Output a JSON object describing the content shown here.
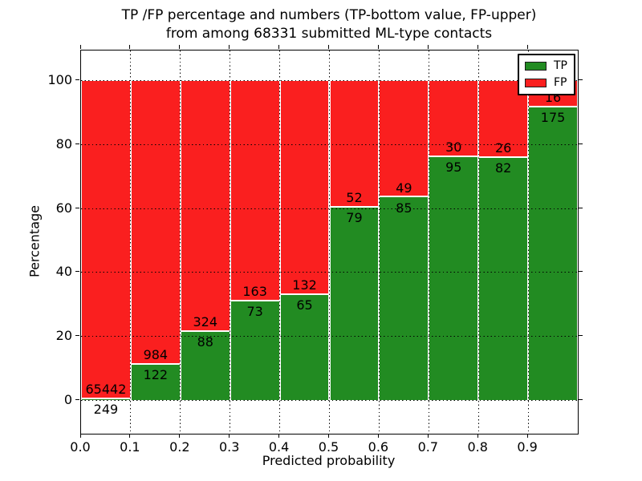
{
  "chart_data": {
    "type": "bar",
    "variant": "stacked-percentage-histogram",
    "title_lines": [
      "TP /FP percentage and numbers (TP-bottom value, FP-upper)",
      "from among 68331 submitted ML-type contacts"
    ],
    "xlabel": "Predicted probability",
    "ylabel": "Percentage",
    "total_contacts": 68331,
    "bin_width": 0.1,
    "bin_left_edges": [
      0.0,
      0.1,
      0.2,
      0.3,
      0.4,
      0.5,
      0.6,
      0.7,
      0.8,
      0.9
    ],
    "xtick_labels": [
      "0.0",
      "0.1",
      "0.2",
      "0.3",
      "0.4",
      "0.5",
      "0.6",
      "0.7",
      "0.8",
      "0.9"
    ],
    "ytick_values": [
      0,
      20,
      40,
      60,
      80,
      100
    ],
    "xlim": [
      0.0,
      1.0
    ],
    "ylim": [
      -10.5,
      109.5
    ],
    "grid": {
      "style": "dotted",
      "color": "#000000",
      "above_bars": true
    },
    "bar_edge_color": "#ffffff",
    "legend": {
      "position": "upper-right",
      "entries": [
        {
          "label": "TP",
          "color": "#228b22"
        },
        {
          "label": "FP",
          "color": "#fa1f1f"
        }
      ]
    },
    "series": [
      {
        "name": "TP",
        "color": "#228b22",
        "counts": [
          249,
          122,
          88,
          73,
          65,
          79,
          85,
          95,
          82,
          175
        ]
      },
      {
        "name": "FP",
        "color": "#fa1f1f",
        "counts": [
          65442,
          984,
          324,
          163,
          132,
          52,
          49,
          30,
          26,
          16
        ]
      }
    ],
    "tp_percent": [
      0.38,
      11.03,
      21.36,
      30.93,
      32.99,
      60.31,
      63.43,
      76.0,
      75.93,
      91.62
    ]
  }
}
